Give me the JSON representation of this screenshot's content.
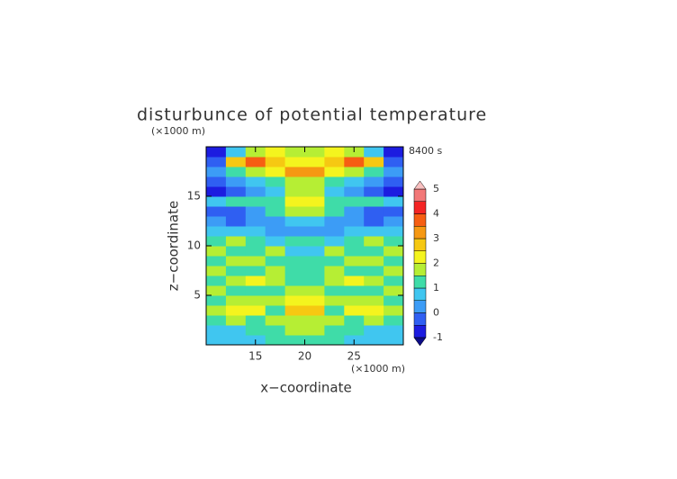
{
  "chart_data": {
    "type": "heatmap",
    "title": "disturbunce of potential temperature",
    "y_unit": "(×1000 m)",
    "x_unit": "(×1000 m)",
    "time_label": "8400 s",
    "xlabel": "x−coordinate",
    "ylabel": "z−coordinate",
    "xlim": [
      10,
      30
    ],
    "ylim": [
      0,
      20
    ],
    "xticks": [
      15,
      20,
      25
    ],
    "yticks": [
      5,
      10,
      15
    ],
    "x": [
      11,
      13,
      15,
      17,
      19,
      21,
      23,
      25,
      27,
      29
    ],
    "y": [
      0.5,
      1.5,
      2.5,
      3.5,
      4.5,
      5.5,
      6.5,
      7.5,
      8.5,
      9.5,
      10.5,
      11.5,
      12.5,
      13.5,
      14.5,
      15.5,
      16.5,
      17.5,
      18.5,
      19.5
    ],
    "values": [
      [
        0.5,
        0.5,
        0.5,
        1,
        1,
        1,
        1,
        0.5,
        0.5,
        0.5
      ],
      [
        0.5,
        0.5,
        1,
        1,
        1.5,
        1.5,
        1,
        1,
        0.5,
        0.5
      ],
      [
        1,
        1.5,
        1,
        1.5,
        1.5,
        1.5,
        1.5,
        1,
        1.5,
        1
      ],
      [
        1.5,
        2,
        2,
        1,
        2.5,
        2.5,
        1,
        2,
        2,
        1.5
      ],
      [
        1,
        1.5,
        1.5,
        1.5,
        2,
        2,
        1.5,
        1.5,
        1.5,
        1
      ],
      [
        1.5,
        1,
        1,
        1,
        1.5,
        1.5,
        1,
        1,
        1,
        1.5
      ],
      [
        1,
        1.5,
        2,
        1.5,
        1,
        1,
        1.5,
        2,
        1.5,
        1
      ],
      [
        1.5,
        1,
        1,
        1.5,
        1,
        1,
        1.5,
        1,
        1,
        1.5
      ],
      [
        1,
        1.5,
        1.5,
        1,
        1,
        1,
        1,
        1.5,
        1.5,
        1
      ],
      [
        1.5,
        1,
        1,
        1.5,
        0.5,
        0.5,
        1.5,
        1,
        1,
        1.5
      ],
      [
        1,
        1.5,
        1,
        0.5,
        1,
        1,
        0.5,
        1,
        1.5,
        1
      ],
      [
        0.5,
        0.5,
        0.5,
        0,
        0,
        0,
        0,
        0.5,
        0.5,
        0.5
      ],
      [
        0,
        -0.5,
        0,
        0,
        0.5,
        0.5,
        0,
        0,
        -0.5,
        0
      ],
      [
        -0.5,
        -0.5,
        0,
        1,
        1.5,
        1.5,
        1,
        0,
        -0.5,
        -0.5
      ],
      [
        0.5,
        1,
        1,
        1,
        2,
        2,
        1,
        1,
        1,
        0.5
      ],
      [
        -1,
        -0.5,
        0,
        0.5,
        1.5,
        1.5,
        0.5,
        0,
        -0.5,
        -1
      ],
      [
        -0.5,
        0,
        0.5,
        1,
        1.5,
        1.5,
        1,
        0.5,
        0,
        -0.5
      ],
      [
        0,
        1,
        1.5,
        2,
        3,
        3,
        2,
        1.5,
        1,
        0
      ],
      [
        -0.5,
        2.5,
        3.5,
        2.5,
        2,
        2,
        2.5,
        3.5,
        2.5,
        -0.5
      ],
      [
        -1,
        0.5,
        1.5,
        2,
        1.5,
        1.5,
        2,
        1.5,
        0.5,
        -1
      ]
    ],
    "levels": [
      -1,
      -0.5,
      0,
      0.5,
      1,
      1.5,
      2,
      2.5,
      3,
      3.5,
      4,
      4.5,
      5
    ],
    "colors": [
      "#1c1ce0",
      "#2f5ff2",
      "#3c9cf6",
      "#40c6f0",
      "#3fdca8",
      "#b6ee34",
      "#f4f41e",
      "#f6c812",
      "#f69812",
      "#f65e12",
      "#f42424",
      "#f27878"
    ],
    "under_color": "#0c0c86",
    "over_color": "#f8c0c0",
    "colorbar_ticks": [
      -1,
      0,
      1,
      2,
      3,
      4,
      5
    ]
  }
}
